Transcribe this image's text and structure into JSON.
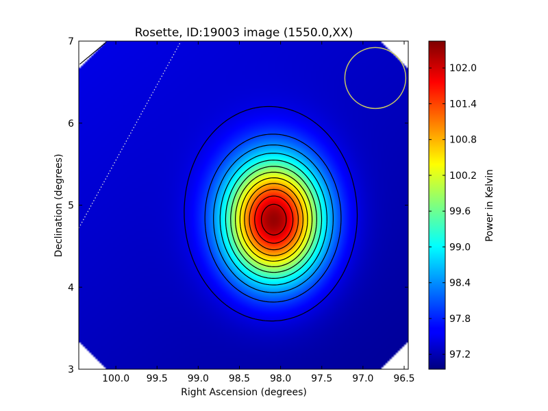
{
  "chart_data": {
    "type": "heatmap",
    "title": "Rosette, ID:19003 image (1550.0,XX)",
    "xlabel": "Right Ascension (degrees)",
    "ylabel": "Declination (degrees)",
    "xlim": [
      100.45,
      96.45
    ],
    "ylim": [
      3,
      7
    ],
    "x_ticks": [
      100.0,
      99.5,
      99.0,
      98.5,
      98.0,
      97.5,
      97.0,
      96.5
    ],
    "x_tick_labels": [
      "100.0",
      "99.5",
      "99.0",
      "98.5",
      "98.0",
      "97.5",
      "97.0",
      "96.5"
    ],
    "y_ticks": [
      3,
      4,
      5,
      6,
      7
    ],
    "y_tick_labels": [
      "3",
      "4",
      "5",
      "6",
      "7"
    ],
    "colorbar": {
      "label": "Power in Kelvin",
      "range": [
        96.95,
        102.45
      ],
      "ticks": [
        97.2,
        97.8,
        98.4,
        99.0,
        99.6,
        100.2,
        100.8,
        101.4,
        102.0
      ],
      "tick_labels": [
        "97.2",
        "97.8",
        "98.4",
        "99.0",
        "99.6",
        "100.2",
        "100.8",
        "101.4",
        "102.0"
      ],
      "colormap": "jet"
    },
    "peak": {
      "ra": 98.08,
      "dec": 4.82,
      "value": 102.35
    },
    "background_level": 97.3,
    "contour_levels": [
      97.5,
      98.0,
      98.4,
      98.8,
      99.2,
      99.6,
      100.0,
      100.4,
      100.8,
      101.2,
      101.6,
      102.0
    ],
    "annotations": [
      {
        "kind": "circle",
        "ra": 96.85,
        "dec": 6.55,
        "radius_deg": 0.37,
        "color": "#c8c864"
      },
      {
        "kind": "dotted-line",
        "from": [
          100.45,
          4.72
        ],
        "to": [
          99.22,
          6.98
        ],
        "color": "#e0e0e0"
      }
    ]
  }
}
